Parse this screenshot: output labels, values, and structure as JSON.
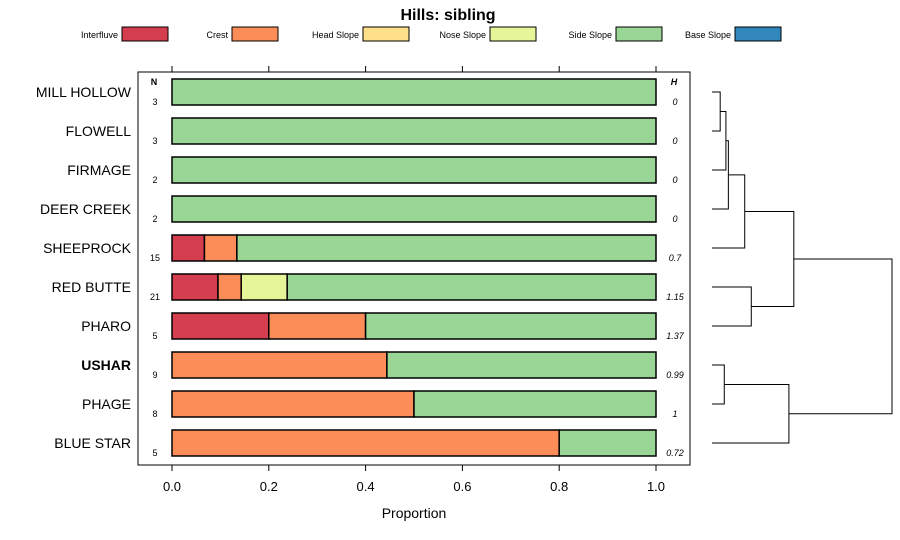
{
  "chart_data": {
    "type": "bar",
    "orientation": "horizontal",
    "stacked": true,
    "title": "Hills: sibling",
    "xlabel": "Proportion",
    "ylabel": "",
    "xlim": [
      0,
      1
    ],
    "xticks": [
      "0.0",
      "0.2",
      "0.4",
      "0.6",
      "0.8",
      "1.0"
    ],
    "n_header": "N",
    "h_header": "H",
    "legend_position": "top",
    "legend": [
      {
        "name": "Interfluve",
        "color": "#D53E4F"
      },
      {
        "name": "Crest",
        "color": "#FC8D59"
      },
      {
        "name": "Head Slope",
        "color": "#FEE08B"
      },
      {
        "name": "Nose Slope",
        "color": "#E6F598"
      },
      {
        "name": "Side Slope",
        "color": "#99D594"
      },
      {
        "name": "Base Slope",
        "color": "#3288BD"
      }
    ],
    "rows": [
      {
        "label": "MILL HOLLOW",
        "n": "3",
        "h": "0",
        "bold": false,
        "values": [
          0,
          0,
          0,
          0,
          1.0,
          0
        ]
      },
      {
        "label": "FLOWELL",
        "n": "3",
        "h": "0",
        "bold": false,
        "values": [
          0,
          0,
          0,
          0,
          1.0,
          0
        ]
      },
      {
        "label": "FIRMAGE",
        "n": "2",
        "h": "0",
        "bold": false,
        "values": [
          0,
          0,
          0,
          0,
          1.0,
          0
        ]
      },
      {
        "label": "DEER CREEK",
        "n": "2",
        "h": "0",
        "bold": false,
        "values": [
          0,
          0,
          0,
          0,
          1.0,
          0
        ]
      },
      {
        "label": "SHEEPROCK",
        "n": "15",
        "h": "0.7",
        "bold": false,
        "values": [
          0.067,
          0.067,
          0,
          0,
          0.866,
          0
        ]
      },
      {
        "label": "RED BUTTE",
        "n": "21",
        "h": "1.15",
        "bold": false,
        "values": [
          0.095,
          0.048,
          0,
          0.095,
          0.762,
          0
        ]
      },
      {
        "label": "PHARO",
        "n": "5",
        "h": "1.37",
        "bold": false,
        "values": [
          0.2,
          0.2,
          0,
          0,
          0.6,
          0
        ]
      },
      {
        "label": "USHAR",
        "n": "9",
        "h": "0.99",
        "bold": true,
        "values": [
          0,
          0.444,
          0,
          0,
          0.556,
          0
        ]
      },
      {
        "label": "PHAGE",
        "n": "8",
        "h": "1",
        "bold": false,
        "values": [
          0,
          0.5,
          0,
          0,
          0.5,
          0
        ]
      },
      {
        "label": "BLUE STAR",
        "n": "5",
        "h": "0.72",
        "bold": false,
        "values": [
          0,
          0.8,
          0,
          0,
          0.2,
          0
        ]
      }
    ],
    "dendrogram": {
      "leaves": [
        "MILL HOLLOW",
        "FLOWELL",
        "FIRMAGE",
        "DEER CREEK",
        "SHEEPROCK",
        "RED BUTTE",
        "PHARO",
        "USHAR",
        "PHAGE",
        "BLUE STAR"
      ],
      "merges": [
        {
          "a": 0,
          "b": 1,
          "height": 0.1
        },
        {
          "a": -1,
          "b": 2,
          "height": 0.17
        },
        {
          "a": -2,
          "b": 3,
          "height": 0.2
        },
        {
          "a": -3,
          "b": 4,
          "height": 0.4
        },
        {
          "a": 5,
          "b": 6,
          "height": 0.48
        },
        {
          "a": -4,
          "b": -5,
          "height": 1.0
        },
        {
          "a": 7,
          "b": 8,
          "height": 0.15
        },
        {
          "a": -7,
          "b": 9,
          "height": 0.94
        },
        {
          "a": -6,
          "b": -8,
          "height": 2.2
        }
      ],
      "max_height": 2.2
    }
  }
}
